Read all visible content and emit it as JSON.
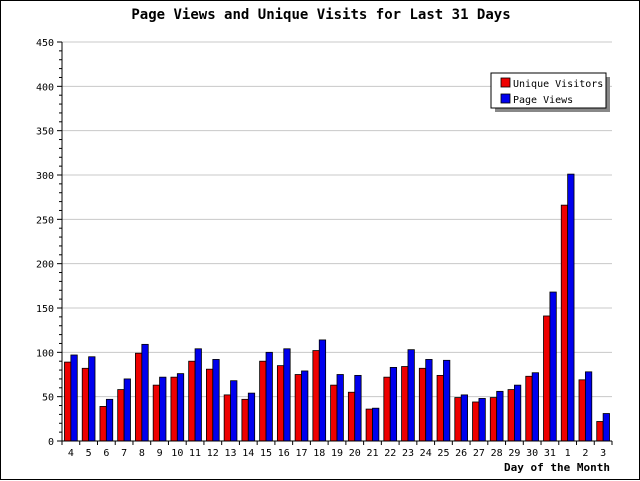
{
  "colors": {
    "unique_visitors": "#ee0000",
    "page_views": "#0000ee",
    "grid": "#c8c8c8",
    "axis": "#000000",
    "background": "#ffffff"
  },
  "chart_data": {
    "type": "bar",
    "title": "Page Views and Unique Visits for Last 31 Days",
    "xlabel": "Day of the Month",
    "ylabel": "",
    "ylim": [
      0,
      450
    ],
    "yticks": [
      0,
      50,
      100,
      150,
      200,
      250,
      300,
      350,
      400,
      450
    ],
    "grid": "horizontal",
    "legend_position": "top-right",
    "categories": [
      "4",
      "5",
      "6",
      "7",
      "8",
      "9",
      "10",
      "11",
      "12",
      "13",
      "14",
      "15",
      "16",
      "17",
      "18",
      "19",
      "20",
      "21",
      "22",
      "23",
      "24",
      "25",
      "26",
      "27",
      "28",
      "29",
      "30",
      "31",
      "1",
      "2",
      "3"
    ],
    "series": [
      {
        "name": "Unique Visitors",
        "color": "#ee0000",
        "values": [
          89,
          82,
          39,
          58,
          99,
          63,
          72,
          90,
          81,
          52,
          47,
          90,
          85,
          75,
          102,
          63,
          55,
          36,
          72,
          84,
          82,
          74,
          49,
          44,
          49,
          58,
          73,
          141,
          266,
          69,
          22
        ]
      },
      {
        "name": "Page Views",
        "color": "#0000ee",
        "values": [
          97,
          95,
          47,
          70,
          109,
          72,
          76,
          104,
          92,
          68,
          54,
          100,
          104,
          79,
          114,
          75,
          74,
          37,
          83,
          103,
          92,
          91,
          52,
          48,
          56,
          63,
          77,
          168,
          301,
          78,
          31
        ]
      }
    ]
  }
}
